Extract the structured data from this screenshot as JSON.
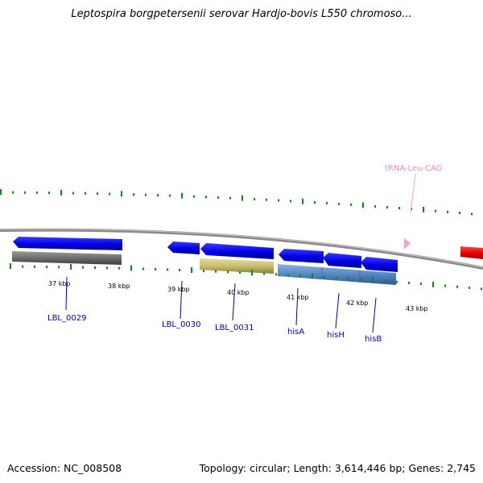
{
  "title": "Leptospira borgpetersenii serovar Hardjo-bovis L550 chromoso...",
  "footer": {
    "accession": "Accession: NC_008508",
    "summary": "Topology: circular; Length: 3,614,446 bp; Genes: 2,745"
  },
  "kbp_labels": [
    "37 kbp",
    "38 kbp",
    "39 kbp",
    "40 kbp",
    "41 kbp",
    "42 kbp",
    "43 kbp"
  ],
  "genes": [
    {
      "label": "LBL_0029"
    },
    {
      "label": "LBL_0030"
    },
    {
      "label": "LBL_0031"
    },
    {
      "label": "hisA"
    },
    {
      "label": "hisH"
    },
    {
      "label": "hisB"
    }
  ],
  "trna": {
    "label": "tRNA-Leu-CAG"
  },
  "colors": {
    "forward_gene": "#0000ee",
    "cog_gray": "#777777",
    "cog_khaki": "#cfc57a",
    "cog_steelblue": "#5b8fc8",
    "rrna_red": "#ee0000",
    "trna_pink": "#f2a3cf",
    "tick_green": "#118811",
    "backbone": "#909090"
  }
}
